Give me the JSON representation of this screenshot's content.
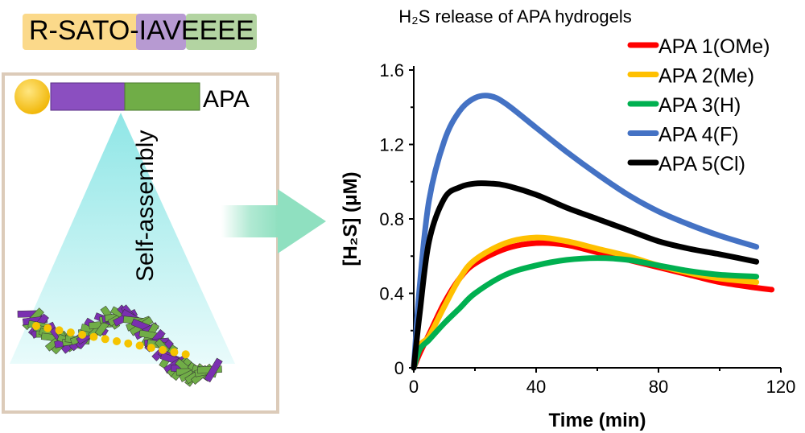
{
  "scheme": {
    "sequence": "R-SATO-IAVEEEE",
    "molecule_label": "APA",
    "process_label": "Self-assembly",
    "colors": {
      "yellow": "#fbd98a",
      "purple": "#b79ad2",
      "green": "#b3d4a2",
      "frame": "#dccbb9",
      "arrow": "#8fe0c0"
    }
  },
  "chart_data": {
    "type": "line",
    "title": "H₂S release of APA hydrogels",
    "xlabel": "Time (min)",
    "ylabel": "[H₂S] (μM)",
    "xlim": [
      0,
      120
    ],
    "ylim": [
      0,
      1.6
    ],
    "xticks": [
      0,
      40,
      80,
      120
    ],
    "yticks": [
      0,
      0.4,
      0.8,
      1.2,
      1.6
    ],
    "xtick_labels": [
      "0",
      "40",
      "80",
      "120"
    ],
    "ytick_labels": [
      "0",
      "0.4",
      "0.8",
      "1.2",
      "1.6"
    ],
    "grid": false,
    "legend_position": "top-right",
    "series": [
      {
        "name": "APA 1(OMe)",
        "color": "#ff0000",
        "x": [
          0,
          2,
          5,
          10,
          15,
          20,
          30,
          40,
          50,
          60,
          70,
          80,
          90,
          100,
          112,
          117
        ],
        "y": [
          0,
          0.08,
          0.18,
          0.35,
          0.48,
          0.56,
          0.64,
          0.67,
          0.66,
          0.62,
          0.58,
          0.54,
          0.5,
          0.46,
          0.43,
          0.42
        ]
      },
      {
        "name": "APA 2(Me)",
        "color": "#ffc000",
        "x": [
          0,
          2,
          5,
          10,
          15,
          20,
          30,
          40,
          50,
          60,
          70,
          80,
          90,
          100,
          112
        ],
        "y": [
          0,
          0.12,
          0.17,
          0.33,
          0.48,
          0.58,
          0.67,
          0.7,
          0.68,
          0.64,
          0.6,
          0.55,
          0.51,
          0.48,
          0.46
        ]
      },
      {
        "name": "APA 3(H)",
        "color": "#00b050",
        "x": [
          0,
          2,
          5,
          10,
          15,
          20,
          30,
          40,
          50,
          60,
          70,
          80,
          90,
          100,
          112
        ],
        "y": [
          0,
          0.1,
          0.15,
          0.24,
          0.32,
          0.4,
          0.5,
          0.55,
          0.58,
          0.59,
          0.58,
          0.55,
          0.52,
          0.5,
          0.49
        ]
      },
      {
        "name": "APA 4(F)",
        "color": "#4472c4",
        "x": [
          0,
          2,
          5,
          10,
          15,
          20,
          25,
          30,
          40,
          50,
          60,
          70,
          80,
          90,
          100,
          112
        ],
        "y": [
          0,
          0.45,
          0.9,
          1.22,
          1.38,
          1.45,
          1.46,
          1.42,
          1.29,
          1.16,
          1.04,
          0.93,
          0.84,
          0.77,
          0.71,
          0.65
        ]
      },
      {
        "name": "APA 5(Cl)",
        "color": "#000000",
        "x": [
          0,
          2,
          5,
          10,
          15,
          20,
          25,
          30,
          40,
          50,
          60,
          70,
          80,
          90,
          100,
          112
        ],
        "y": [
          0,
          0.3,
          0.68,
          0.91,
          0.97,
          0.99,
          0.99,
          0.98,
          0.93,
          0.86,
          0.8,
          0.74,
          0.68,
          0.64,
          0.61,
          0.57
        ]
      }
    ]
  }
}
